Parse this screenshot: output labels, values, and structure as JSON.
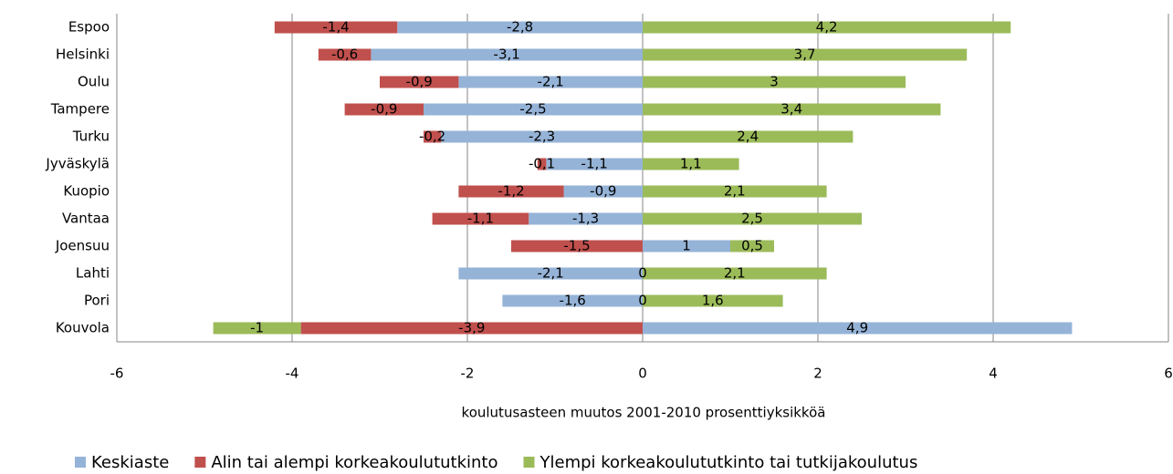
{
  "chart_data": {
    "type": "bar",
    "orientation": "horizontal",
    "stacked": true,
    "x_label": "koulutusasteen muutos 2001-2010 prosenttiyksikköä",
    "categories": [
      "Espoo",
      "Helsinki",
      "Oulu",
      "Tampere",
      "Turku",
      "Jyväskylä",
      "Kuopio",
      "Vantaa",
      "Joensuu",
      "Lahti",
      "Pori",
      "Kouvola"
    ],
    "series": [
      {
        "name": "Keskiaste",
        "color": "#95b3d7",
        "values": [
          -2.8,
          -3.1,
          -2.1,
          -2.5,
          -2.3,
          -1.1,
          -0.9,
          -1.3,
          1,
          -2.1,
          -1.6,
          4.9
        ],
        "value_labels": [
          "-2,8",
          "-3,1",
          "-2,1",
          "-2,5",
          "-2,3",
          "-1,1",
          "-0,9",
          "-1,3",
          "1",
          "-2,1",
          "-1,6",
          "4,9"
        ]
      },
      {
        "name": "Alin tai alempi korkeakoulututkinto",
        "color": "#c0504d",
        "values": [
          -1.4,
          -0.6,
          -0.9,
          -0.9,
          -0.2,
          -0.1,
          -1.2,
          -1.1,
          -1.5,
          0,
          0,
          -3.9
        ],
        "value_labels": [
          "-1,4",
          "-0,6",
          "-0,9",
          "-0,9",
          "-0,2",
          "-0,1",
          "-1,2",
          "-1,1",
          "-1,5",
          "0",
          "0",
          "-3,9"
        ]
      },
      {
        "name": "Ylempi korkeakoulututkinto tai tutkijakoulutus",
        "color": "#9bbb59",
        "values": [
          4.2,
          3.7,
          3,
          3.4,
          2.4,
          1.1,
          2.1,
          2.5,
          0.5,
          2.1,
          1.6,
          -1
        ],
        "value_labels": [
          "4,2",
          "3,7",
          "3",
          "3,4",
          "2,4",
          "1,1",
          "2,1",
          "2,5",
          "0,5",
          "2,1",
          "1,6",
          "-1"
        ]
      }
    ],
    "xlim": [
      -6,
      6
    ],
    "xticks": [
      -6,
      -4,
      -2,
      0,
      2,
      4,
      6
    ],
    "grid": true,
    "legend": "bottom"
  }
}
